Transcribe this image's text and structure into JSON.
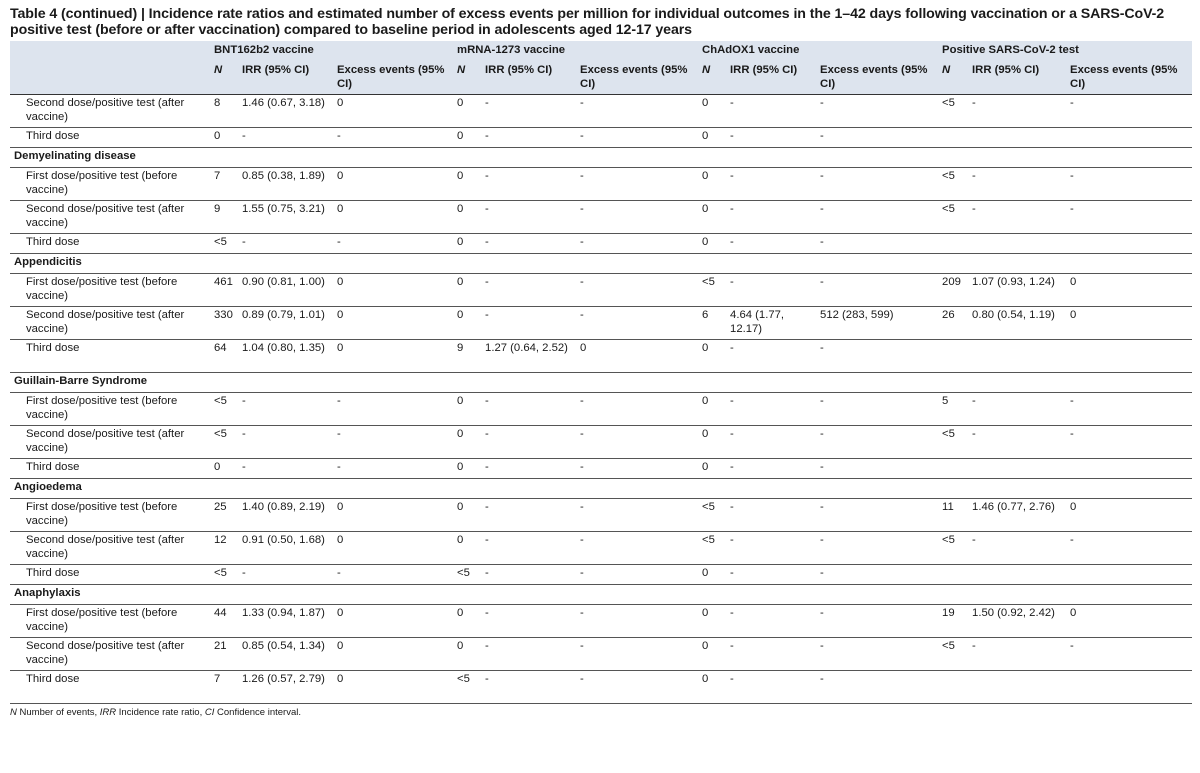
{
  "title": "Table 4 (continued) | Incidence rate ratios and estimated number of excess events per million for individual outcomes in the 1–42 days following vaccination or a SARS-CoV-2 positive test (before or after vaccination) compared to baseline period in adolescents aged 12-17 years",
  "groups": [
    "BNT162b2 vaccine",
    "mRNA-1273 vaccine",
    "ChAdOX1 vaccine",
    "Positive SARS-CoV-2 test"
  ],
  "columns": {
    "n": "N",
    "irr": "IRR (95% CI)",
    "excess": "Excess events (95% CI)"
  },
  "rows": [
    {
      "type": "row",
      "label": "Second dose/positive test (after vaccine)",
      "cells": [
        "8",
        "1.46 (0.67, 3.18)",
        "0",
        "0",
        "-",
        "-",
        "0",
        "-",
        "-",
        "<5",
        "-",
        "-"
      ]
    },
    {
      "type": "row",
      "label": "Third dose",
      "cells": [
        "0",
        "-",
        "-",
        "0",
        "-",
        "-",
        "0",
        "-",
        "-",
        "",
        "",
        ""
      ]
    },
    {
      "type": "section",
      "label": "Demyelinating disease"
    },
    {
      "type": "row",
      "label": "First dose/positive test (before vaccine)",
      "cells": [
        "7",
        "0.85 (0.38, 1.89)",
        "0",
        "0",
        "-",
        "-",
        "0",
        "-",
        "-",
        "<5",
        "-",
        "-"
      ]
    },
    {
      "type": "row",
      "label": "Second dose/positive test (after vaccine)",
      "cells": [
        "9",
        "1.55 (0.75, 3.21)",
        "0",
        "0",
        "-",
        "-",
        "0",
        "-",
        "-",
        "<5",
        "-",
        "-"
      ]
    },
    {
      "type": "row",
      "label": "Third dose",
      "cells": [
        "<5",
        "-",
        "-",
        "0",
        "-",
        "-",
        "0",
        "-",
        "-",
        "",
        "",
        ""
      ]
    },
    {
      "type": "section",
      "label": "Appendicitis"
    },
    {
      "type": "row",
      "label": "First dose/positive test (before vaccine)",
      "cells": [
        "461",
        "0.90 (0.81, 1.00)",
        "0",
        "0",
        "-",
        "-",
        "<5",
        "-",
        "-",
        "209",
        "1.07 (0.93, 1.24)",
        "0"
      ]
    },
    {
      "type": "row",
      "label": "Second dose/positive test (after vaccine)",
      "cells": [
        "330",
        "0.89 (0.79, 1.01)",
        "0",
        "0",
        "-",
        "-",
        "6",
        "4.64 (1.77, 12.17)",
        "512 (283, 599)",
        "26",
        "0.80 (0.54, 1.19)",
        "0"
      ]
    },
    {
      "type": "row",
      "label": "Third dose",
      "cells": [
        "64",
        "1.04 (0.80, 1.35)",
        "0",
        "9",
        "1.27 (0.64, 2.52)",
        "0",
        "0",
        "-",
        "-",
        "",
        "",
        ""
      ]
    },
    {
      "type": "section",
      "label": "Guillain-Barre Syndrome"
    },
    {
      "type": "row",
      "label": "First dose/positive test (before vaccine)",
      "cells": [
        "<5",
        "-",
        "-",
        "0",
        "-",
        "-",
        "0",
        "-",
        "-",
        "5",
        "-",
        "-"
      ]
    },
    {
      "type": "row",
      "label": "Second dose/positive test (after vaccine)",
      "cells": [
        "<5",
        "-",
        "-",
        "0",
        "-",
        "-",
        "0",
        "-",
        "-",
        "<5",
        "-",
        "-"
      ]
    },
    {
      "type": "row",
      "label": "Third dose",
      "cells": [
        "0",
        "-",
        "-",
        "0",
        "-",
        "-",
        "0",
        "-",
        "-",
        "",
        "",
        ""
      ]
    },
    {
      "type": "section",
      "label": "Angioedema"
    },
    {
      "type": "row",
      "label": "First dose/positive test (before vaccine)",
      "cells": [
        "25",
        "1.40 (0.89, 2.19)",
        "0",
        "0",
        "-",
        "-",
        "<5",
        "-",
        "-",
        "11",
        "1.46 (0.77, 2.76)",
        "0"
      ]
    },
    {
      "type": "row",
      "label": "Second dose/positive test (after vaccine)",
      "cells": [
        "12",
        "0.91 (0.50, 1.68)",
        "0",
        "0",
        "-",
        "-",
        "<5",
        "-",
        "-",
        "<5",
        "-",
        "-"
      ]
    },
    {
      "type": "row",
      "label": "Third dose",
      "cells": [
        "<5",
        "-",
        "-",
        "<5",
        "-",
        "-",
        "0",
        "-",
        "-",
        "",
        "",
        ""
      ]
    },
    {
      "type": "section",
      "label": "Anaphylaxis"
    },
    {
      "type": "row",
      "label": "First dose/positive test (before vaccine)",
      "cells": [
        "44",
        "1.33 (0.94, 1.87)",
        "0",
        "0",
        "-",
        "-",
        "0",
        "-",
        "-",
        "19",
        "1.50 (0.92, 2.42)",
        "0"
      ]
    },
    {
      "type": "row",
      "label": "Second dose/positive test (after vaccine)",
      "cells": [
        "21",
        "0.85 (0.54, 1.34)",
        "0",
        "0",
        "-",
        "-",
        "0",
        "-",
        "-",
        "<5",
        "-",
        "-"
      ]
    },
    {
      "type": "row",
      "label": "Third dose",
      "cells": [
        "7",
        "1.26 (0.57, 2.79)",
        "0",
        "<5",
        "-",
        "-",
        "0",
        "-",
        "-",
        "",
        "",
        ""
      ]
    }
  ],
  "footnote": {
    "n_abbr": "N",
    "n_text": " Number of events, ",
    "irr_abbr": "IRR",
    "irr_text": " Incidence rate ratio, ",
    "ci_abbr": "CI",
    "ci_text": " Confidence interval."
  }
}
